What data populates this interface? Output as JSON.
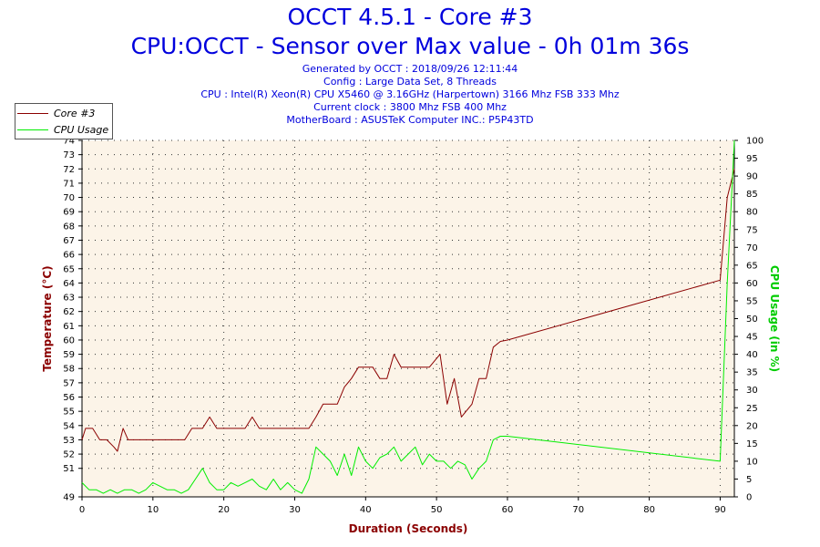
{
  "chart_data": {
    "type": "line",
    "title": "OCCT 4.5.1 - Core #3",
    "subtitle": "CPU:OCCT - Sensor over Max value - 0h 01m 36s",
    "info_lines": [
      "Generated by OCCT : 2018/09/26 12:11:44",
      "Config : Large Data Set, 8 Threads",
      "CPU : Intel(R) Xeon(R) CPU X5460 @ 3.16GHz (Harpertown) 3166 Mhz FSB 333 Mhz",
      "Current clock : 3800 Mhz FSB 400 Mhz",
      "MotherBoard : ASUSTeK Computer INC.: P5P43TD"
    ],
    "xlabel": "Duration (Seconds)",
    "ylabel_left": "Temperature (°C)",
    "ylabel_right": "CPU Usage (in %)",
    "xlim": [
      0,
      92
    ],
    "ylim_left": [
      49,
      74
    ],
    "ylim_right": [
      0,
      100
    ],
    "x_ticks": [
      0,
      10,
      20,
      30,
      40,
      50,
      60,
      70,
      80,
      90
    ],
    "y_ticks_left": [
      49,
      51,
      52,
      53,
      54,
      55,
      56,
      57,
      58,
      59,
      60,
      61,
      62,
      63,
      64,
      65,
      66,
      67,
      68,
      69,
      70,
      71,
      72,
      73,
      74
    ],
    "y_ticks_right": [
      0,
      5,
      10,
      15,
      20,
      25,
      30,
      35,
      40,
      45,
      50,
      55,
      60,
      65,
      70,
      75,
      80,
      85,
      90,
      95,
      100
    ],
    "legend": "top-left",
    "grid": true,
    "colors": {
      "plot_bg": "#fcf4e8",
      "core": "#8b0000",
      "usage": "#00ee00",
      "title": "#0000dd",
      "axis_label": "#8b0000",
      "usage_label": "#00cc00"
    },
    "series": [
      {
        "name": "Core #3",
        "axis": "left",
        "points": [
          [
            0,
            53
          ],
          [
            0.5,
            53.8
          ],
          [
            1.5,
            53.8
          ],
          [
            2.5,
            53
          ],
          [
            3.5,
            53
          ],
          [
            4.5,
            52.5
          ],
          [
            5,
            52.2
          ],
          [
            5.8,
            53.8
          ],
          [
            6.5,
            53
          ],
          [
            7.5,
            53
          ],
          [
            10,
            53
          ],
          [
            13.5,
            53
          ],
          [
            14.5,
            53
          ],
          [
            15.5,
            53.8
          ],
          [
            17,
            53.8
          ],
          [
            18,
            54.6
          ],
          [
            19,
            53.8
          ],
          [
            21,
            53.8
          ],
          [
            23,
            53.8
          ],
          [
            24,
            54.6
          ],
          [
            25,
            53.8
          ],
          [
            27,
            53.8
          ],
          [
            29,
            53.8
          ],
          [
            31,
            53.8
          ],
          [
            32,
            53.8
          ],
          [
            33,
            54.6
          ],
          [
            34,
            55.5
          ],
          [
            36,
            55.5
          ],
          [
            37,
            56.7
          ],
          [
            38,
            57.3
          ],
          [
            39,
            58.1
          ],
          [
            41,
            58.1
          ],
          [
            42,
            57.3
          ],
          [
            43,
            57.3
          ],
          [
            44,
            59
          ],
          [
            45,
            58.1
          ],
          [
            48,
            58.1
          ],
          [
            49,
            58.1
          ],
          [
            50.5,
            59
          ],
          [
            51.5,
            55.5
          ],
          [
            52.5,
            57.3
          ],
          [
            53.5,
            54.6
          ],
          [
            55,
            55.5
          ],
          [
            56,
            57.3
          ],
          [
            57,
            57.3
          ],
          [
            58,
            59.5
          ],
          [
            59,
            59.9
          ],
          [
            60,
            60
          ],
          [
            90,
            64.2
          ],
          [
            91,
            70
          ],
          [
            92,
            72
          ]
        ]
      },
      {
        "name": "CPU Usage",
        "axis": "right",
        "points": [
          [
            0,
            4
          ],
          [
            1,
            2
          ],
          [
            2,
            2
          ],
          [
            3,
            1
          ],
          [
            4,
            2
          ],
          [
            5,
            1
          ],
          [
            6,
            2
          ],
          [
            7,
            2
          ],
          [
            8,
            1
          ],
          [
            9,
            2
          ],
          [
            10,
            4
          ],
          [
            11,
            3
          ],
          [
            12,
            2
          ],
          [
            13,
            2
          ],
          [
            14,
            1
          ],
          [
            15,
            2
          ],
          [
            16,
            5
          ],
          [
            17,
            8
          ],
          [
            18,
            4
          ],
          [
            19,
            2
          ],
          [
            20,
            2
          ],
          [
            21,
            4
          ],
          [
            22,
            3
          ],
          [
            23,
            4
          ],
          [
            24,
            5
          ],
          [
            25,
            3
          ],
          [
            26,
            2
          ],
          [
            27,
            5
          ],
          [
            28,
            2
          ],
          [
            29,
            4
          ],
          [
            30,
            2
          ],
          [
            31,
            1
          ],
          [
            32,
            5
          ],
          [
            33,
            14
          ],
          [
            34,
            12
          ],
          [
            35,
            10
          ],
          [
            36,
            6
          ],
          [
            37,
            12
          ],
          [
            38,
            6
          ],
          [
            39,
            14
          ],
          [
            40,
            10
          ],
          [
            41,
            8
          ],
          [
            42,
            11
          ],
          [
            43,
            12
          ],
          [
            44,
            14
          ],
          [
            45,
            10
          ],
          [
            46,
            12
          ],
          [
            47,
            14
          ],
          [
            48,
            9
          ],
          [
            49,
            12
          ],
          [
            50,
            10
          ],
          [
            51,
            10
          ],
          [
            52,
            8
          ],
          [
            53,
            10
          ],
          [
            54,
            9
          ],
          [
            55,
            5
          ],
          [
            56,
            8
          ],
          [
            57,
            10
          ],
          [
            58,
            16
          ],
          [
            59,
            17
          ],
          [
            60,
            17
          ],
          [
            90,
            10
          ],
          [
            91,
            60
          ],
          [
            92,
            100
          ]
        ]
      }
    ]
  }
}
